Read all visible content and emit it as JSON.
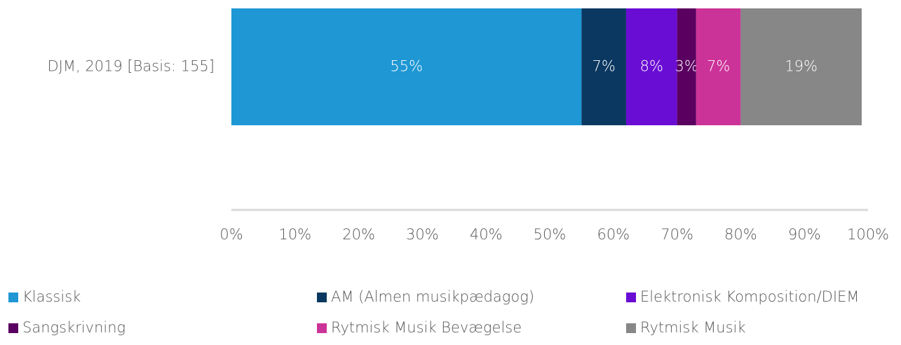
{
  "chart_data": {
    "type": "stacked-bar-horizontal",
    "categories": [
      "DJM, 2019 [Basis: 155]"
    ],
    "series": [
      {
        "name": "Klassisk",
        "color": "#1e97d4",
        "values": [
          55
        ],
        "value_labels": [
          "55%"
        ]
      },
      {
        "name": "AM (Almen musikpædagog)",
        "color": "#0b3861",
        "values": [
          7
        ],
        "value_labels": [
          "7%"
        ]
      },
      {
        "name": "Elektronisk Komposition/DIEM",
        "color": "#6a0dd4",
        "values": [
          8
        ],
        "value_labels": [
          "8%"
        ]
      },
      {
        "name": "Sangskrivning",
        "color": "#5a0060",
        "values": [
          3
        ],
        "value_labels": [
          "3%"
        ]
      },
      {
        "name": "Rytmisk Musik Bevægelse",
        "color": "#cc3399",
        "values": [
          7
        ],
        "value_labels": [
          "7%"
        ]
      },
      {
        "name": "Rytmisk Musik",
        "color": "#878787",
        "values": [
          19
        ],
        "value_labels": [
          "19%"
        ]
      }
    ],
    "xlim": [
      0,
      100
    ],
    "xticks": [
      {
        "value": 0,
        "label": "0%"
      },
      {
        "value": 10,
        "label": "10%"
      },
      {
        "value": 20,
        "label": "20%"
      },
      {
        "value": 30,
        "label": "30%"
      },
      {
        "value": 40,
        "label": "40%"
      },
      {
        "value": 50,
        "label": "50%"
      },
      {
        "value": 60,
        "label": "60%"
      },
      {
        "value": 70,
        "label": "70%"
      },
      {
        "value": 80,
        "label": "80%"
      },
      {
        "value": 90,
        "label": "90%"
      },
      {
        "value": 100,
        "label": "100%"
      }
    ],
    "grid": false,
    "legend": "bottom"
  }
}
